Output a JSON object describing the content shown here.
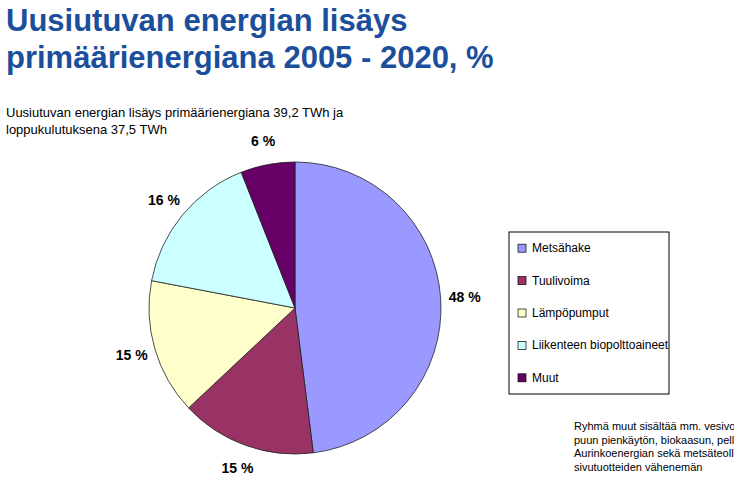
{
  "chart_data": {
    "type": "pie",
    "title": "Uusiutuvan energian lisäys primäärienergiana 2005 - 2020, %",
    "subtitle": "Uusiutuvan energian lisäys primäärienergiana 39,2 TWh ja loppukulutuksena 37,5 TWh",
    "categories": [
      "Metsähake",
      "Tuulivoima",
      "Lämpöpumput",
      "Liikenteen biopolttoaineet",
      "Muut"
    ],
    "values": [
      48,
      15,
      15,
      16,
      6
    ],
    "value_labels": [
      "48 %",
      "15 %",
      "15 %",
      "16 %",
      "6 %"
    ],
    "colors": [
      "#9999ff",
      "#993366",
      "#ffffcc",
      "#ccffff",
      "#660066"
    ],
    "data_labels": true,
    "legend": "right",
    "annotations": [
      "Ryhmä muut sisältää mm. vesivoiman, puun pienkäytön, biokaasun, pelletit, Aurinkoenergian sekä metsäteollisuuden sivutuotteiden vähenemän"
    ]
  }
}
